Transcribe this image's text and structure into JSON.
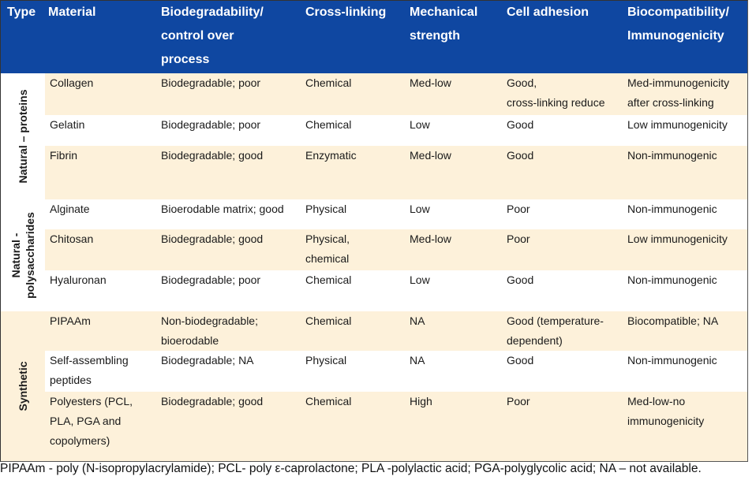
{
  "header": {
    "type": "Type",
    "material": "Material",
    "biodeg_line1": "Biodegradability/",
    "biodeg_line2": "control over",
    "biodeg_line3": "process",
    "crosslinking": "Cross-linking",
    "mech_line1": "Mechanical",
    "mech_line2": "strength",
    "cell_adhesion": "Cell adhesion",
    "biocomp_line1": "Biocompatibility/",
    "biocomp_line2": "Immunogenicity"
  },
  "groups": {
    "proteins_line1": "Natural – proteins",
    "polysacch_line1": "Natural -",
    "polysacch_line2": "polysaccharides",
    "synthetic": "Synthetic"
  },
  "rows": [
    {
      "material": [
        "Collagen"
      ],
      "biodeg": [
        "Biodegradable; poor"
      ],
      "crosslink": [
        "Chemical"
      ],
      "mech": [
        "Med-low"
      ],
      "cell": [
        "Good,",
        "cross-linking reduce"
      ],
      "biocomp": [
        "Med-immunogenicity",
        "after cross-linking"
      ]
    },
    {
      "material": [
        "Gelatin"
      ],
      "biodeg": [
        "Biodegradable; poor"
      ],
      "crosslink": [
        "Chemical"
      ],
      "mech": [
        "Low"
      ],
      "cell": [
        "Good"
      ],
      "biocomp": [
        "Low immunogenicity"
      ]
    },
    {
      "material": [
        "Fibrin"
      ],
      "biodeg": [
        "Biodegradable; good"
      ],
      "crosslink": [
        "Enzymatic"
      ],
      "mech": [
        "Med-low"
      ],
      "cell": [
        "Good"
      ],
      "biocomp": [
        "Non-immunogenic"
      ]
    },
    {
      "material": [
        "Alginate"
      ],
      "biodeg": [
        "Bioerodable matrix; good"
      ],
      "crosslink": [
        "Physical"
      ],
      "mech": [
        "Low"
      ],
      "cell": [
        "Poor"
      ],
      "biocomp": [
        "Non-immunogenic"
      ]
    },
    {
      "material": [
        "Chitosan"
      ],
      "biodeg": [
        "Biodegradable; good"
      ],
      "crosslink": [
        "Physical,",
        "chemical"
      ],
      "mech": [
        "Med-low"
      ],
      "cell": [
        "Poor"
      ],
      "biocomp": [
        "Low immunogenicity"
      ]
    },
    {
      "material": [
        "Hyaluronan"
      ],
      "biodeg": [
        "Biodegradable; poor"
      ],
      "crosslink": [
        "Chemical"
      ],
      "mech": [
        "Low"
      ],
      "cell": [
        "Good"
      ],
      "biocomp": [
        "Non-immunogenic"
      ]
    },
    {
      "material": [
        "PIPAAm"
      ],
      "biodeg": [
        "Non-biodegradable;",
        "bioerodable"
      ],
      "crosslink": [
        "Chemical"
      ],
      "mech": [
        "NA"
      ],
      "cell": [
        "Good (temperature-",
        "dependent)"
      ],
      "biocomp": [
        "Biocompatible; NA"
      ]
    },
    {
      "material": [
        "Self-assembling",
        "peptides"
      ],
      "biodeg": [
        "Biodegradable; NA"
      ],
      "crosslink": [
        "Physical"
      ],
      "mech": [
        "NA"
      ],
      "cell": [
        "Good"
      ],
      "biocomp": [
        "Non-immunogenic"
      ]
    },
    {
      "material": [
        "Polyesters (PCL,",
        "PLA, PGA and",
        "copolymers)"
      ],
      "biodeg": [
        "Biodegradable; good"
      ],
      "crosslink": [
        "Chemical"
      ],
      "mech": [
        "High"
      ],
      "cell": [
        "Poor"
      ],
      "biocomp": [
        "Med-low-no",
        "immunogenicity"
      ]
    }
  ],
  "footnote": "PIPAAm - poly (N-isopropylacrylamide); PCL- poly ε-caprolactone; PLA -polylactic acid; PGA-polyglycolic acid; NA – not available.",
  "colors": {
    "header_bg": "#0f47a1",
    "band": "#fdf1da"
  }
}
